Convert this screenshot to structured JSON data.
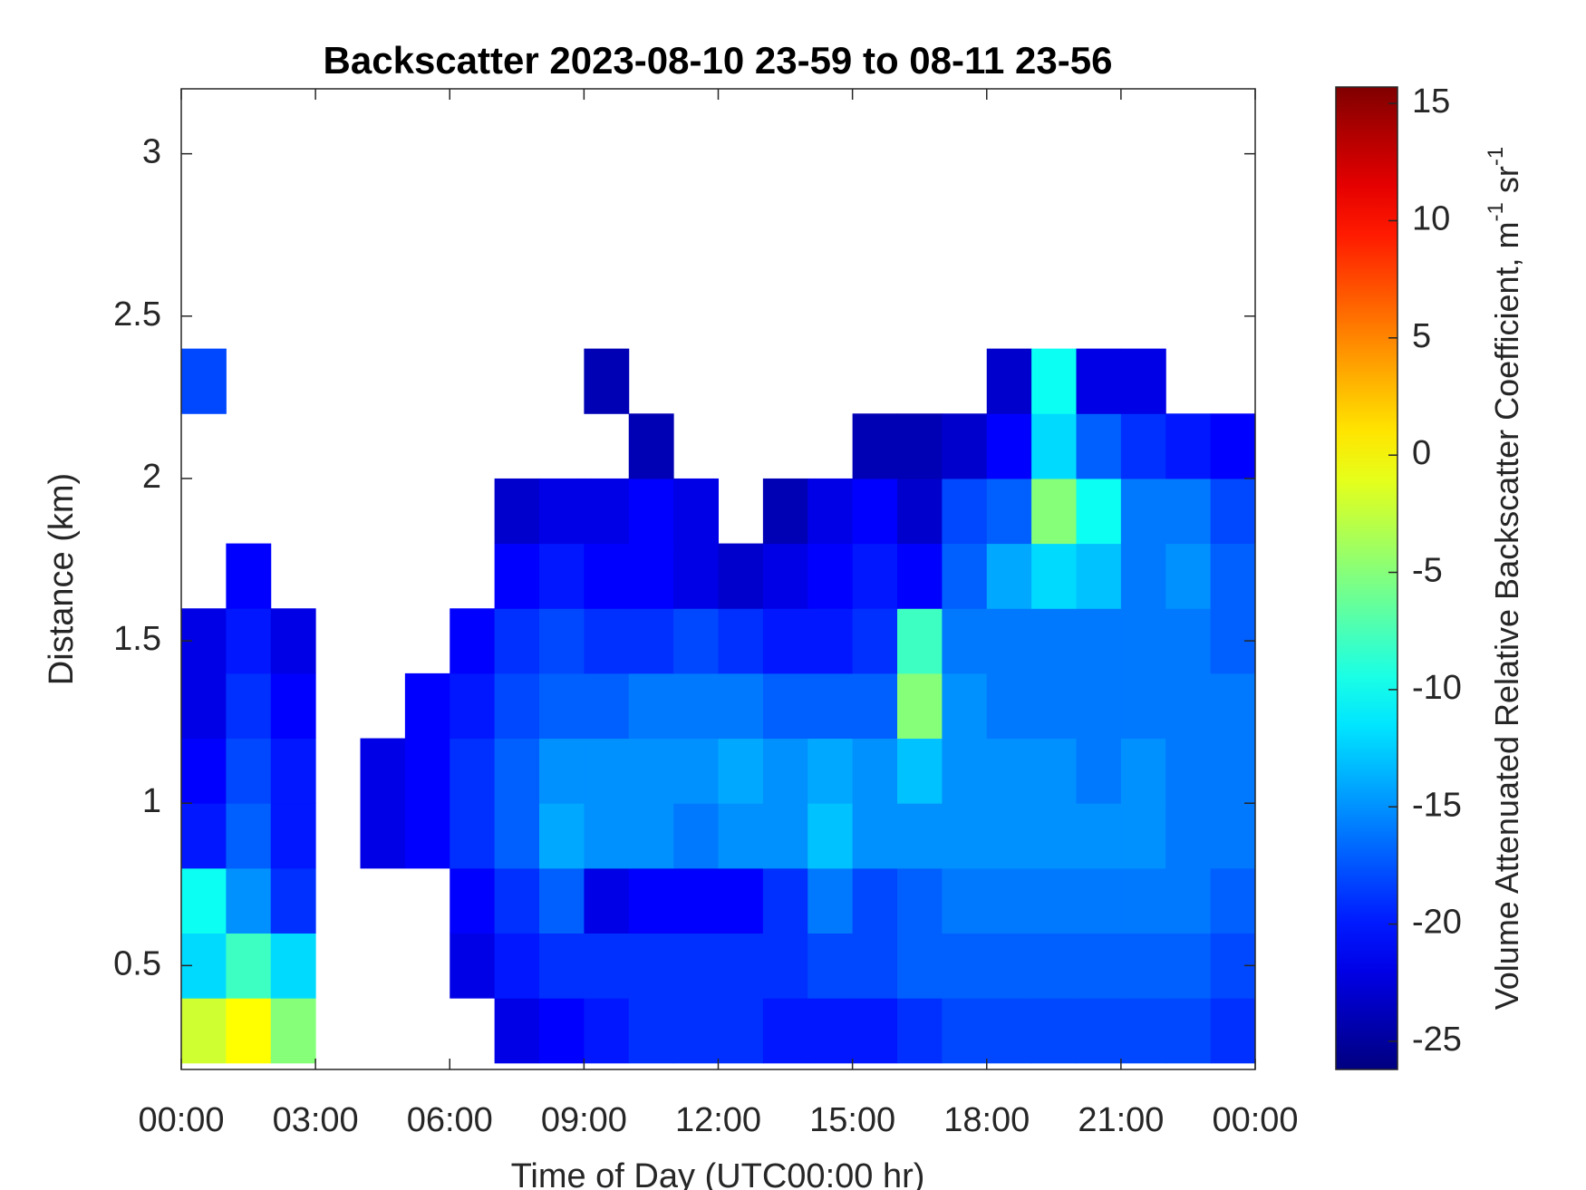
{
  "chart_data": {
    "type": "heatmap",
    "title": "Backscatter 2023-08-10 23-59 to 08-11 23-56",
    "x_label": "Time of Day (UTC00:00 hr)",
    "y_label": "Distance (km)",
    "colorbar_label": [
      "Volume Attenuated Relative Backscatter Coefficient, m",
      "-1",
      " sr",
      "-1"
    ],
    "colormap": "jet",
    "xbins": [
      0,
      1,
      2,
      3,
      4,
      5,
      6,
      7,
      8,
      9,
      10,
      11,
      12,
      13,
      14,
      15,
      16,
      17,
      18,
      19,
      20,
      21,
      22,
      23,
      24
    ],
    "ybins": [
      0.2,
      0.4,
      0.6,
      0.8,
      1.0,
      1.2,
      1.4,
      1.6,
      1.8,
      2.0,
      2.2,
      2.4
    ],
    "values": [
      [
        -2,
        0,
        -5,
        null,
        null,
        null,
        null,
        -22,
        -21,
        -20,
        -19,
        -19,
        -19,
        -20,
        -20,
        -20,
        -19,
        -18,
        -18,
        -18,
        -18,
        -18,
        -18,
        -19
      ],
      [
        -12,
        -8,
        -12,
        null,
        null,
        null,
        -22,
        -20,
        -19,
        -19,
        -19,
        -19,
        -19,
        -19,
        -18,
        -18,
        -17,
        -17,
        -17,
        -17,
        -17,
        -17,
        -17,
        -18
      ],
      [
        -10,
        -15,
        -19,
        null,
        null,
        null,
        -21,
        -19,
        -17,
        -22,
        -21,
        -21,
        -21,
        -19,
        -16,
        -18,
        -17,
        -16,
        -16,
        -16,
        -16,
        -16,
        -16,
        -17
      ],
      [
        -20,
        -17,
        -20,
        null,
        -22,
        -21,
        -19,
        -17,
        -14,
        -15,
        -15,
        -16,
        -15,
        -15,
        -13,
        -15,
        -15,
        -15,
        -15,
        -15,
        -15,
        -15,
        -16,
        -16
      ],
      [
        -21,
        -18,
        -20,
        null,
        -22,
        -21,
        -19,
        -17,
        -15,
        -15,
        -15,
        -15,
        -14,
        -15,
        -14,
        -15,
        -13,
        -15,
        -15,
        -15,
        -16,
        -15,
        -16,
        -16
      ],
      [
        -22,
        -19,
        -21,
        null,
        null,
        -21,
        -20,
        -18,
        -17,
        -17,
        -16,
        -16,
        -16,
        -17,
        -17,
        -17,
        -5,
        -15,
        -16,
        -16,
        -16,
        -16,
        -16,
        -16
      ],
      [
        -22,
        -20,
        -22,
        null,
        null,
        null,
        -21,
        -19,
        -18,
        -19,
        -19,
        -18,
        -19,
        -20,
        -20,
        -19,
        -8,
        -16,
        -16,
        -16,
        -16,
        -16,
        -16,
        -17
      ],
      [
        null,
        -21,
        null,
        null,
        null,
        null,
        null,
        -21,
        -20,
        -21,
        -21,
        -22,
        -23,
        -22,
        -21,
        -20,
        -21,
        -17,
        -14,
        -12,
        -13,
        -16,
        -15,
        -17
      ],
      [
        null,
        null,
        null,
        null,
        null,
        null,
        null,
        -23,
        -22,
        -22,
        -21,
        -22,
        null,
        -24,
        -22,
        -21,
        -23,
        -18,
        -17,
        -5,
        -10,
        -16,
        -16,
        -18
      ],
      [
        null,
        null,
        null,
        null,
        null,
        null,
        null,
        null,
        null,
        null,
        -24,
        null,
        null,
        null,
        null,
        -24,
        -24,
        -23,
        -21,
        -12,
        -17,
        -19,
        -20,
        -21
      ],
      [
        -18,
        null,
        null,
        null,
        null,
        null,
        null,
        null,
        null,
        -24,
        null,
        null,
        null,
        null,
        null,
        null,
        null,
        null,
        -23,
        -10,
        -22,
        -22,
        null,
        null
      ]
    ],
    "xlim": [
      0,
      24
    ],
    "xticks": [
      {
        "value": 0,
        "label": "00:00"
      },
      {
        "value": 3,
        "label": "03:00"
      },
      {
        "value": 6,
        "label": "06:00"
      },
      {
        "value": 9,
        "label": "09:00"
      },
      {
        "value": 12,
        "label": "12:00"
      },
      {
        "value": 15,
        "label": "15:00"
      },
      {
        "value": 18,
        "label": "18:00"
      },
      {
        "value": 21,
        "label": "21:00"
      },
      {
        "value": 24,
        "label": "00:00"
      }
    ],
    "ylim": [
      0.18,
      3.2
    ],
    "yticks": [
      0.5,
      1,
      1.5,
      2,
      2.5,
      3
    ],
    "clim": [
      -26.2,
      15.7
    ],
    "cticks": [
      -25,
      -20,
      -15,
      -10,
      -5,
      0,
      5,
      10,
      15
    ]
  }
}
